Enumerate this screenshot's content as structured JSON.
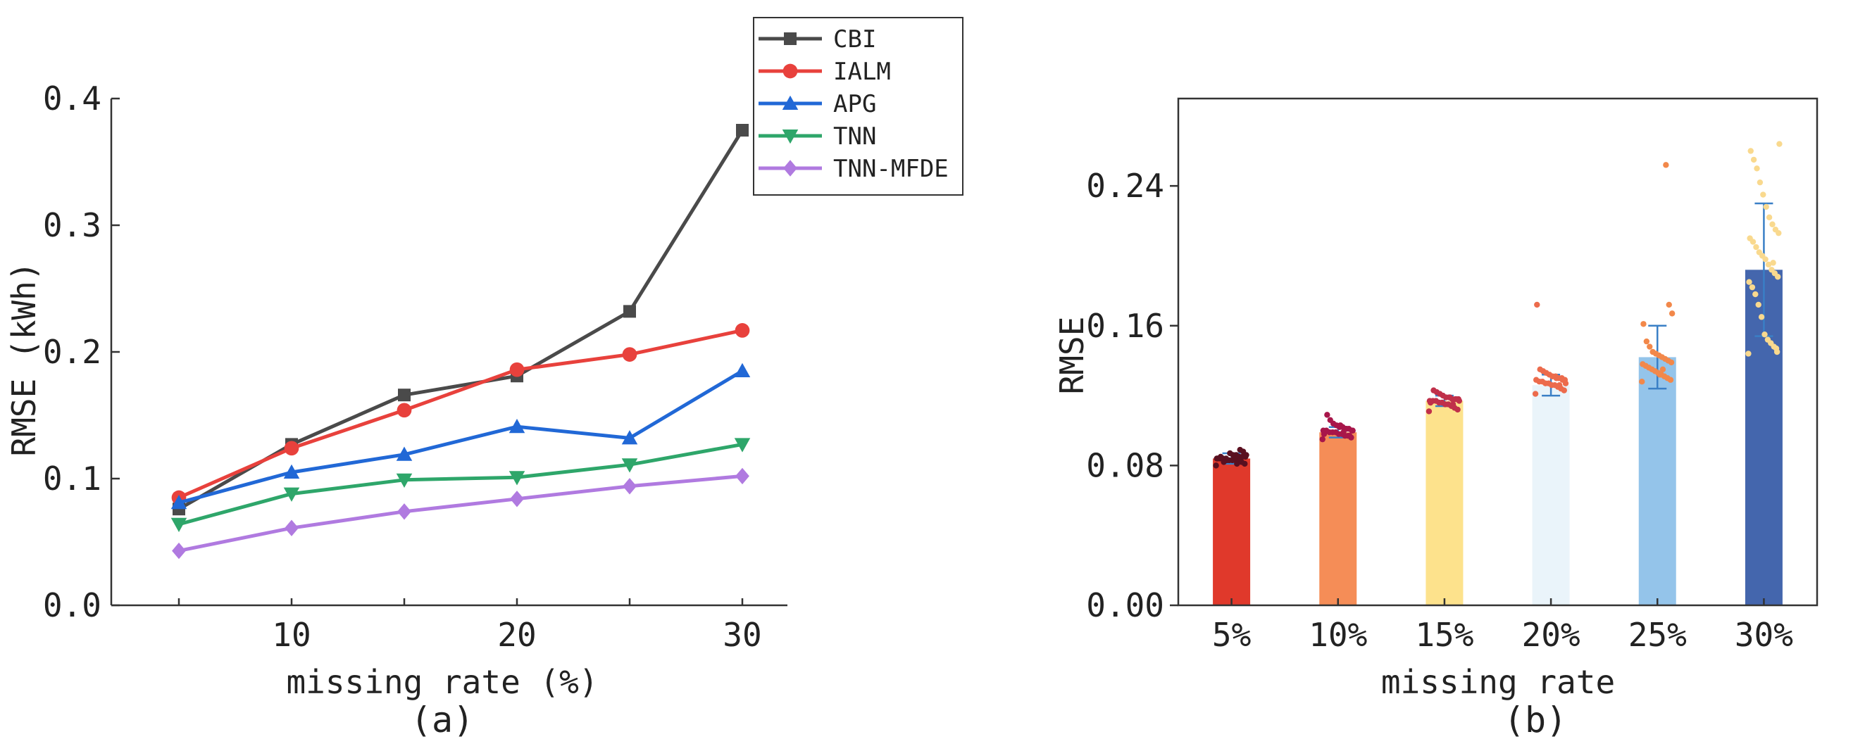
{
  "chart_data": [
    {
      "type": "line",
      "caption": "(a)",
      "xlabel": "missing rate (%)",
      "ylabel": "RMSE (kWh)",
      "xlim": [
        2,
        32
      ],
      "ylim": [
        0,
        0.4
      ],
      "x": [
        5,
        10,
        15,
        20,
        25,
        30
      ],
      "xticks": [
        10,
        20,
        30
      ],
      "xtick_labels": [
        "10",
        "20",
        "30"
      ],
      "yticks": [
        0,
        0.1,
        0.2,
        0.3,
        0.4
      ],
      "ytick_labels": [
        "0.0",
        "0.1",
        "0.2",
        "0.3",
        "0.4"
      ],
      "legend_position": "top-right",
      "series": [
        {
          "name": "CBI",
          "color": "#4a4a4a",
          "marker": "square",
          "values": [
            0.076,
            0.127,
            0.166,
            0.181,
            0.232,
            0.375
          ]
        },
        {
          "name": "IALM",
          "color": "#e8413c",
          "marker": "circle",
          "values": [
            0.085,
            0.124,
            0.154,
            0.186,
            0.198,
            0.217
          ]
        },
        {
          "name": "APG",
          "color": "#2168d6",
          "marker": "triangle-up",
          "values": [
            0.081,
            0.105,
            0.119,
            0.141,
            0.132,
            0.185
          ]
        },
        {
          "name": "TNN",
          "color": "#2ea66a",
          "marker": "triangle-down",
          "values": [
            0.064,
            0.088,
            0.099,
            0.101,
            0.111,
            0.127
          ]
        },
        {
          "name": "TNN-MFDE",
          "color": "#b07ae0",
          "marker": "diamond",
          "values": [
            0.043,
            0.061,
            0.074,
            0.084,
            0.094,
            0.102
          ]
        }
      ]
    },
    {
      "type": "bar",
      "caption": "(b)",
      "xlabel": "missing rate",
      "ylabel": "RMSE",
      "ylim": [
        0,
        0.29
      ],
      "yticks": [
        0,
        0.08,
        0.16,
        0.24
      ],
      "ytick_labels": [
        "0.00",
        "0.08",
        "0.16",
        "0.24"
      ],
      "categories": [
        "5%",
        "10%",
        "15%",
        "20%",
        "25%",
        "30%"
      ],
      "values": [
        0.084,
        0.099,
        0.117,
        0.126,
        0.142,
        0.192
      ],
      "error": [
        0.003,
        0.003,
        0.003,
        0.006,
        0.018,
        0.038
      ],
      "bar_colors": [
        "#e0392b",
        "#f58d57",
        "#fde28c",
        "#eaf4fa",
        "#94c4ea",
        "#4466ad"
      ],
      "point_colors": [
        "#5a1020",
        "#a8164a",
        "#c0304a",
        "#ec6b4c",
        "#f2884a",
        "#f9d98e"
      ],
      "errorbar_color": "#3a7fc6",
      "points": [
        [
          0.08,
          0.081,
          0.082,
          0.082,
          0.083,
          0.083,
          0.083,
          0.084,
          0.084,
          0.084,
          0.084,
          0.085,
          0.085,
          0.085,
          0.086,
          0.086,
          0.087,
          0.083,
          0.082,
          0.085,
          0.084,
          0.086,
          0.088,
          0.089,
          0.081,
          0.084
        ],
        [
          0.095,
          0.096,
          0.097,
          0.097,
          0.098,
          0.098,
          0.099,
          0.099,
          0.099,
          0.1,
          0.1,
          0.1,
          0.101,
          0.101,
          0.102,
          0.102,
          0.103,
          0.104,
          0.106,
          0.109,
          0.098,
          0.1,
          0.097,
          0.101,
          0.099,
          0.103
        ],
        [
          0.111,
          0.112,
          0.113,
          0.114,
          0.115,
          0.115,
          0.116,
          0.116,
          0.117,
          0.117,
          0.117,
          0.118,
          0.118,
          0.118,
          0.119,
          0.119,
          0.12,
          0.121,
          0.122,
          0.123,
          0.116,
          0.117,
          0.118,
          0.115,
          0.119
        ],
        [
          0.121,
          0.123,
          0.124,
          0.125,
          0.126,
          0.126,
          0.127,
          0.127,
          0.128,
          0.128,
          0.129,
          0.129,
          0.13,
          0.13,
          0.131,
          0.131,
          0.132,
          0.133,
          0.134,
          0.135,
          0.172,
          0.127,
          0.129,
          0.126,
          0.13
        ],
        [
          0.128,
          0.129,
          0.13,
          0.131,
          0.132,
          0.133,
          0.134,
          0.135,
          0.136,
          0.137,
          0.138,
          0.139,
          0.14,
          0.141,
          0.142,
          0.143,
          0.144,
          0.145,
          0.148,
          0.151,
          0.161,
          0.167,
          0.172,
          0.252,
          0.135,
          0.132
        ],
        [
          0.144,
          0.145,
          0.148,
          0.15,
          0.152,
          0.155,
          0.165,
          0.172,
          0.178,
          0.182,
          0.185,
          0.188,
          0.19,
          0.192,
          0.195,
          0.198,
          0.2,
          0.202,
          0.205,
          0.208,
          0.21,
          0.213,
          0.215,
          0.218,
          0.222,
          0.228,
          0.235,
          0.242,
          0.25,
          0.255,
          0.26,
          0.264,
          0.147,
          0.196
        ]
      ]
    }
  ]
}
